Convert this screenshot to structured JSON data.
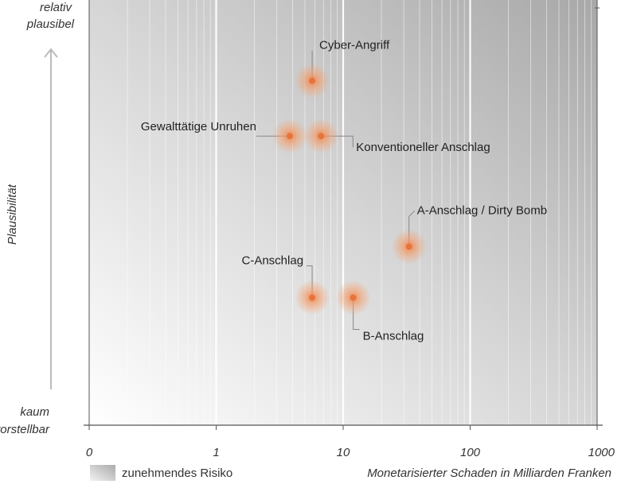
{
  "chart_data": {
    "type": "scatter",
    "title": "",
    "xlabel": "Monetarisierter Schaden in Milliarden Franken",
    "ylabel": "Plausibilität",
    "x_scale": "log",
    "x_ticks": [
      "0",
      "1",
      "10",
      "100",
      "1000"
    ],
    "y_top_label": [
      "relativ",
      "plausibel"
    ],
    "y_bottom_label": [
      "kaum",
      "vorstellbar"
    ],
    "xlim": [
      0.1,
      1000
    ],
    "ylim": [
      0,
      1
    ],
    "legend": {
      "label": "zunehmendes Risiko",
      "placement": "bottom-left"
    },
    "colors": {
      "point": "#e8743b",
      "glow": "#f4a070"
    },
    "points": [
      {
        "label": "Cyber-Angriff",
        "x": 5.7,
        "y": 0.81
      },
      {
        "label": "Gewalttätige Unruhen",
        "x": 3.8,
        "y": 0.68
      },
      {
        "label": "Konventioneller Anschlag",
        "x": 6.7,
        "y": 0.68
      },
      {
        "label": "A-Anschlag / Dirty Bomb",
        "x": 33,
        "y": 0.42
      },
      {
        "label": "C-Anschlag",
        "x": 5.7,
        "y": 0.3
      },
      {
        "label": "B-Anschlag",
        "x": 12,
        "y": 0.3
      }
    ]
  }
}
